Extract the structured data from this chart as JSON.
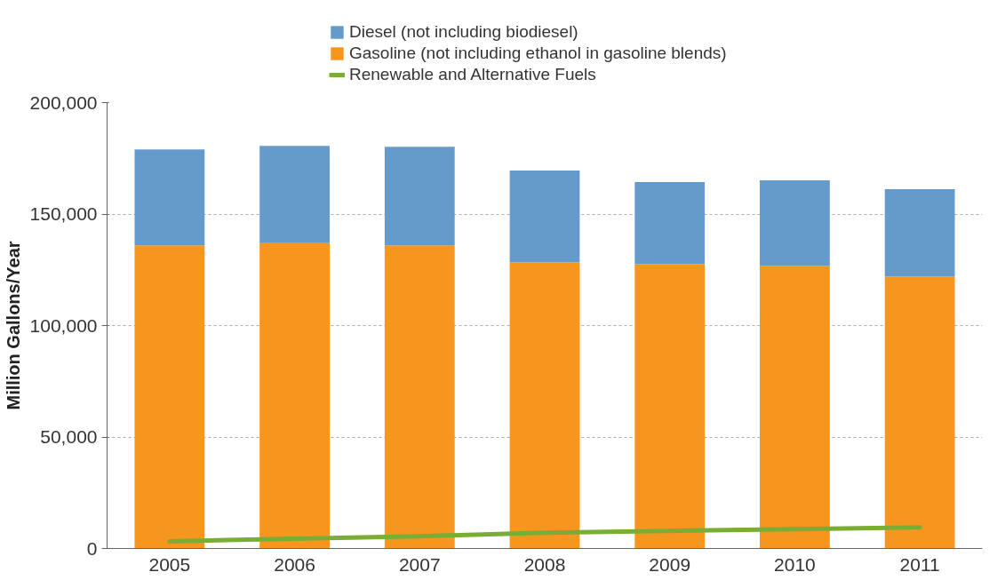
{
  "chart_data": {
    "type": "bar",
    "stacked": true,
    "ylabel": "Million Gallons/Year",
    "categories": [
      "2005",
      "2006",
      "2007",
      "2008",
      "2009",
      "2010",
      "2011"
    ],
    "series": [
      {
        "name": "Gasoline (not including ethanol in gasoline blends)",
        "color": "#f7961e",
        "values": [
          136000,
          137000,
          136000,
          128300,
          127500,
          126700,
          122000
        ]
      },
      {
        "name": "Diesel (not including biodiesel)",
        "color": "#659bcb",
        "values": [
          43000,
          43600,
          44200,
          41200,
          36800,
          38400,
          39200
        ]
      },
      {
        "name": "Renewable and Alternative Fuels",
        "type": "line",
        "color": "#7aad36",
        "values": [
          3200,
          4400,
          5500,
          7100,
          7900,
          8700,
          9500
        ]
      }
    ],
    "ylim": [
      0,
      200000
    ],
    "yticks": [
      {
        "value": 0,
        "label": "0"
      },
      {
        "value": 50000,
        "label": "50,000"
      },
      {
        "value": 100000,
        "label": "100,000"
      },
      {
        "value": 150000,
        "label": "150,000"
      },
      {
        "value": 200000,
        "label": "200,000"
      }
    ],
    "grid": "y",
    "legend": "top",
    "marker": "none",
    "line_style": "solid"
  }
}
